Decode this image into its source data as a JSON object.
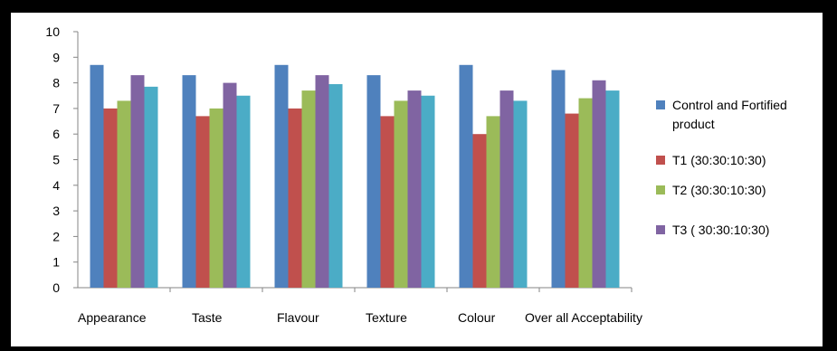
{
  "chart_data": {
    "type": "bar",
    "categories": [
      "Appearance",
      "Taste",
      "Flavour",
      "Texture",
      "Colour",
      "Over all Acceptability"
    ],
    "series": [
      {
        "name": "Control and Fortified product",
        "color": "#4F81BD",
        "values": [
          8.7,
          8.3,
          8.7,
          8.3,
          8.7,
          8.5
        ]
      },
      {
        "name": "T1 (30:30:10:30)",
        "color": "#C0504D",
        "values": [
          7.0,
          6.7,
          7.0,
          6.7,
          6.0,
          6.8
        ]
      },
      {
        "name": "T2 (30:30:10:30)",
        "color": "#9BBB59",
        "values": [
          7.3,
          7.0,
          7.7,
          7.3,
          6.7,
          7.4
        ]
      },
      {
        "name": "T3 ( 30:30:10:30)",
        "color": "#8064A2",
        "values": [
          8.3,
          8.0,
          8.3,
          7.7,
          7.7,
          8.1
        ]
      },
      {
        "color": "#4BACC6",
        "values": [
          7.85,
          7.5,
          7.95,
          7.5,
          7.3,
          7.7
        ]
      }
    ],
    "yticks": [
      0,
      1,
      2,
      3,
      4,
      5,
      6,
      7,
      8,
      9,
      10
    ],
    "ylim": [
      0,
      10
    ],
    "grid": false,
    "legend_position": "right",
    "legend_lines": [
      [
        "Control and Fortified",
        "product"
      ],
      [
        "T1 (30:30:10:30)"
      ],
      [
        "T2 (30:30:10:30)"
      ],
      [
        "T3 ( 30:30:10:30)"
      ]
    ]
  }
}
